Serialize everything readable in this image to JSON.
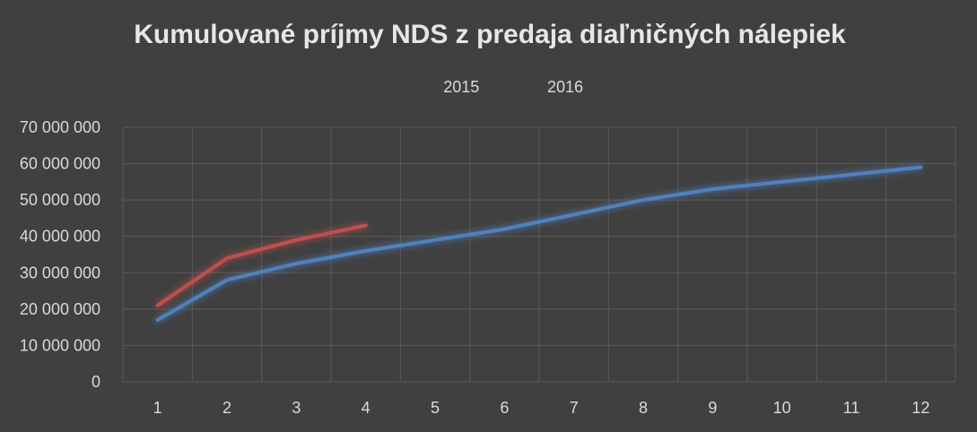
{
  "chart_data": {
    "type": "line",
    "title": "Kumulované príjmy NDS z predaja diaľničných nálepiek",
    "xlabel": "",
    "ylabel": "",
    "categories": [
      "1",
      "2",
      "3",
      "4",
      "5",
      "6",
      "7",
      "8",
      "9",
      "10",
      "11",
      "12"
    ],
    "y_ticks": [
      "0",
      "10 000 000",
      "20 000 000",
      "30 000 000",
      "40 000 000",
      "50 000 000",
      "60 000 000",
      "70 000 000"
    ],
    "ylim": [
      0,
      70000000
    ],
    "grid": true,
    "legend_position": "top",
    "series": [
      {
        "name": "2015",
        "color": "#4f81bd",
        "values": [
          17000000,
          28000000,
          32500000,
          36000000,
          39000000,
          42000000,
          46000000,
          50000000,
          53000000,
          55000000,
          57000000,
          59000000
        ]
      },
      {
        "name": "2016",
        "color": "#c0504d",
        "values": [
          21000000,
          34000000,
          39000000,
          43000000,
          null,
          null,
          null,
          null,
          null,
          null,
          null,
          null
        ]
      }
    ]
  }
}
